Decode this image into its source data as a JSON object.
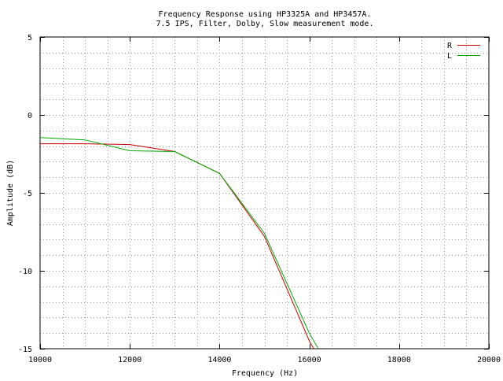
{
  "chart_data": {
    "type": "line",
    "title": "Frequency Response using HP3325A and HP3457A.",
    "subtitle": "7.5 IPS, Filter, Dolby, Slow measurement mode.",
    "xlabel": "Frequency (Hz)",
    "ylabel": "Amplitude (dB)",
    "xlim": [
      10000,
      20000
    ],
    "ylim": [
      -15,
      5
    ],
    "x_ticks": [
      10000,
      12000,
      14000,
      16000,
      18000,
      20000
    ],
    "x_tick_labels": [
      "10000",
      "12000",
      "14000",
      "16000",
      "18000",
      "20000"
    ],
    "y_ticks": [
      5,
      0,
      -5,
      -10,
      -15
    ],
    "y_tick_labels": [
      "5",
      "0",
      "-5",
      "-10",
      "-15"
    ],
    "grid": true,
    "legend_position": "top-right",
    "series": [
      {
        "name": "R",
        "color": "#cc0000",
        "x": [
          10000,
          11000,
          12000,
          13000,
          14000,
          15000,
          16000,
          16100
        ],
        "y": [
          -1.85,
          -1.85,
          -1.9,
          -2.35,
          -3.75,
          -7.8,
          -14.5,
          -15.0
        ]
      },
      {
        "name": "L",
        "color": "#00aa00",
        "x": [
          10000,
          11000,
          12000,
          13000,
          14000,
          15000,
          16000,
          16200
        ],
        "y": [
          -1.45,
          -1.6,
          -2.3,
          -2.35,
          -3.75,
          -7.6,
          -14.0,
          -15.0
        ]
      }
    ]
  }
}
